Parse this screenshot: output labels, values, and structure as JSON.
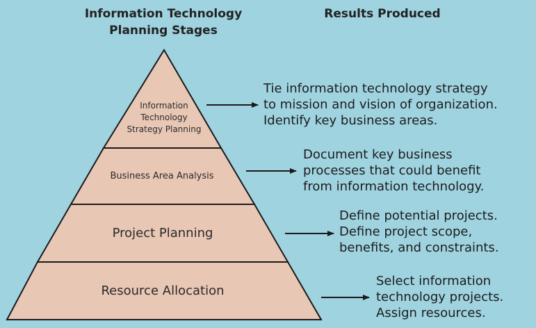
{
  "headers": {
    "stages": [
      "Information Technology",
      "Planning Stages"
    ],
    "results": "Results Produced"
  },
  "stages": [
    {
      "label": [
        "Information",
        "Technology",
        "Strategy Planning"
      ],
      "results": [
        "Tie information technology strategy",
        "to mission and vision of organization.",
        "Identify key business areas."
      ]
    },
    {
      "label": [
        "Business Area Analysis"
      ],
      "results": [
        "Document key business",
        "processes that could benefit",
        "from information technology."
      ]
    },
    {
      "label": [
        "Project Planning"
      ],
      "results": [
        "Define potential projects.",
        "Define project scope,",
        "benefits, and constraints."
      ]
    },
    {
      "label": [
        "Resource Allocation"
      ],
      "results": [
        "Select information",
        "technology projects.",
        "Assign resources."
      ]
    }
  ],
  "colors": {
    "background": "#9fd3e0",
    "pyramid_fill": "#e8c7b5",
    "pyramid_stroke": "#1a1a1a",
    "arrow": "#1a1a1a"
  }
}
